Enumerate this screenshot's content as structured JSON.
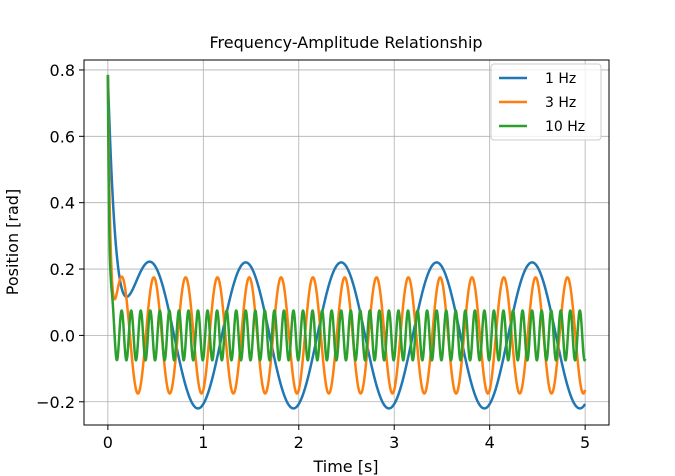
{
  "chart_data": {
    "type": "line",
    "title": "Frequency-Amplitude Relationship",
    "xlabel": "Time [s]",
    "ylabel": "Position [rad]",
    "xlim": [
      -0.25,
      5.25
    ],
    "ylim": [
      -0.27,
      0.83
    ],
    "xticks": [
      0,
      1,
      2,
      3,
      4,
      5
    ],
    "xtick_labels": [
      "0",
      "1",
      "2",
      "3",
      "4",
      "5"
    ],
    "yticks": [
      -0.2,
      0.0,
      0.2,
      0.4,
      0.6,
      0.8
    ],
    "ytick_labels": [
      "−0.2",
      "0.0",
      "0.2",
      "0.4",
      "0.6",
      "0.8"
    ],
    "grid": true,
    "legend": "top-right",
    "t_range": [
      0,
      5
    ],
    "initial_position": 0.785,
    "series": [
      {
        "name": "1 Hz",
        "color": "#1f77b4",
        "frequency_hz": 1,
        "steady_amplitude": 0.22,
        "settle_time": 0.3
      },
      {
        "name": "3 Hz",
        "color": "#ff7f0e",
        "frequency_hz": 3,
        "steady_amplitude": 0.175,
        "settle_time": 0.1
      },
      {
        "name": "10 Hz",
        "color": "#2ca02c",
        "frequency_hz": 10,
        "steady_amplitude": 0.075,
        "settle_time": 0.05
      }
    ]
  }
}
